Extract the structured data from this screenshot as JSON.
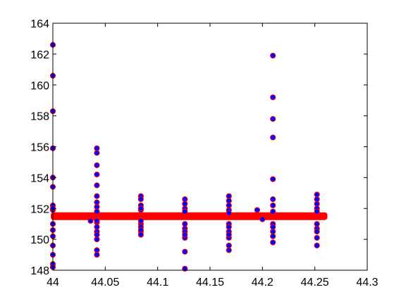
{
  "chart_data": {
    "type": "scatter",
    "title": "",
    "xlabel": "",
    "ylabel": "",
    "xlim": [
      44,
      44.3
    ],
    "ylim": [
      148,
      164
    ],
    "grid": false,
    "legend": "none",
    "x_ticks": [
      "44",
      "44.05",
      "44.1",
      "44.15",
      "44.2",
      "44.25",
      "44.3"
    ],
    "y_ticks": [
      "148",
      "150",
      "152",
      "154",
      "156",
      "158",
      "160",
      "162",
      "164"
    ],
    "colors": {
      "band": "#ff0000",
      "marker_face": "#0000ff",
      "marker_edge": "#ff0000",
      "axes": "#000000"
    },
    "baseline": {
      "x_start": 44.0,
      "x_end": 44.26,
      "y_center": 151.5,
      "y_spread": 0.25
    },
    "series": [
      {
        "x": [
          44.0,
          44.0,
          44.0,
          44.0,
          44.0,
          44.0,
          44.0,
          44.0,
          44.0,
          44.0,
          44.0,
          44.0,
          44.0,
          44.0,
          44.0,
          44.0,
          44.042,
          44.042,
          44.042,
          44.042,
          44.042,
          44.042,
          44.042,
          44.042,
          44.042,
          44.042,
          44.042,
          44.042,
          44.042,
          44.042,
          44.042,
          44.042,
          44.042,
          44.084,
          44.084,
          44.084,
          44.084,
          44.084,
          44.084,
          44.084,
          44.084,
          44.084,
          44.084,
          44.084,
          44.126,
          44.126,
          44.126,
          44.126,
          44.126,
          44.126,
          44.126,
          44.126,
          44.126,
          44.126,
          44.126,
          44.168,
          44.168,
          44.168,
          44.168,
          44.168,
          44.168,
          44.168,
          44.168,
          44.168,
          44.168,
          44.168,
          44.168,
          44.21,
          44.21,
          44.21,
          44.21,
          44.21,
          44.21,
          44.21,
          44.21,
          44.21,
          44.21,
          44.21,
          44.21,
          44.21,
          44.252,
          44.252,
          44.252,
          44.252,
          44.252,
          44.252,
          44.252,
          44.252,
          44.252,
          44.252,
          44.036,
          44.195,
          44.2
        ],
        "y": [
          162.6,
          160.6,
          158.3,
          155.9,
          154.0,
          153.4,
          152.2,
          151.9,
          151.0,
          150.6,
          150.2,
          149.6,
          149.0,
          148.4,
          148.2,
          152.0,
          155.9,
          155.6,
          154.8,
          154.2,
          153.5,
          152.8,
          152.1,
          151.8,
          151.1,
          150.8,
          150.5,
          150.0,
          149.3,
          149.0,
          152.4,
          151.2,
          150.3,
          152.8,
          152.6,
          152.2,
          151.9,
          151.0,
          150.8,
          150.5,
          150.3,
          152.0,
          151.2,
          150.6,
          152.6,
          152.3,
          152.0,
          151.0,
          150.7,
          150.5,
          150.1,
          149.2,
          148.1,
          151.8,
          150.3,
          152.8,
          152.5,
          152.2,
          151.9,
          151.0,
          150.8,
          150.5,
          150.1,
          149.6,
          149.3,
          151.7,
          150.3,
          161.9,
          159.2,
          157.8,
          156.6,
          153.9,
          152.6,
          152.2,
          151.0,
          150.8,
          150.5,
          150.2,
          149.8,
          151.8,
          152.9,
          152.6,
          152.3,
          152.0,
          151.0,
          150.7,
          150.5,
          150.1,
          149.6,
          151.8,
          151.2,
          151.9,
          151.3
        ]
      }
    ]
  }
}
